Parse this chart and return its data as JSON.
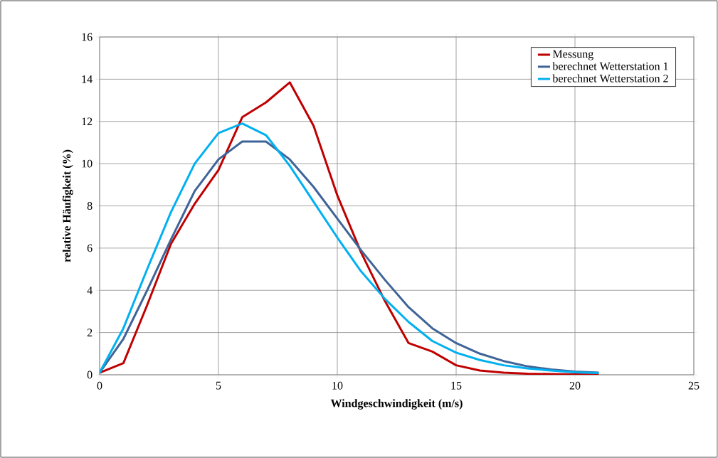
{
  "chart_data": {
    "type": "line",
    "xlabel": "Windgeschwindigkeit  (m/s)",
    "ylabel": "relative Häufigkeit (%)",
    "x": [
      0,
      1,
      2,
      3,
      4,
      5,
      6,
      7,
      8,
      9,
      10,
      11,
      12,
      13,
      14,
      15,
      16,
      17,
      18,
      19,
      20,
      21
    ],
    "xlim": [
      0,
      25
    ],
    "xticks": [
      0,
      5,
      10,
      15,
      20,
      25
    ],
    "ylim": [
      0,
      16
    ],
    "yticks": [
      0,
      2,
      4,
      6,
      8,
      10,
      12,
      14,
      16
    ],
    "grid": true,
    "legend": "top right",
    "marker": "none",
    "line_style": "solid",
    "series": [
      {
        "name": "Messung",
        "color": "#c00000",
        "values": [
          0.1,
          0.55,
          3.3,
          6.2,
          8.1,
          9.7,
          12.2,
          12.9,
          13.85,
          11.8,
          8.5,
          5.8,
          3.5,
          1.5,
          1.1,
          0.45,
          0.2,
          0.1,
          0.05,
          0.03,
          0.02,
          0.01
        ]
      },
      {
        "name": "berechnet Wetterstation 1",
        "color": "#3f6497",
        "values": [
          0.1,
          1.7,
          4.0,
          6.4,
          8.7,
          10.2,
          11.05,
          11.05,
          10.2,
          8.9,
          7.4,
          5.9,
          4.5,
          3.2,
          2.2,
          1.5,
          1.0,
          0.65,
          0.4,
          0.25,
          0.15,
          0.1
        ]
      },
      {
        "name": "berechnet Wetterstation 2",
        "color": "#00b0f0",
        "values": [
          0.1,
          2.2,
          5.0,
          7.7,
          10.0,
          11.45,
          11.9,
          11.35,
          9.9,
          8.2,
          6.5,
          4.9,
          3.6,
          2.5,
          1.6,
          1.05,
          0.7,
          0.45,
          0.3,
          0.2,
          0.12,
          0.08
        ]
      }
    ]
  }
}
